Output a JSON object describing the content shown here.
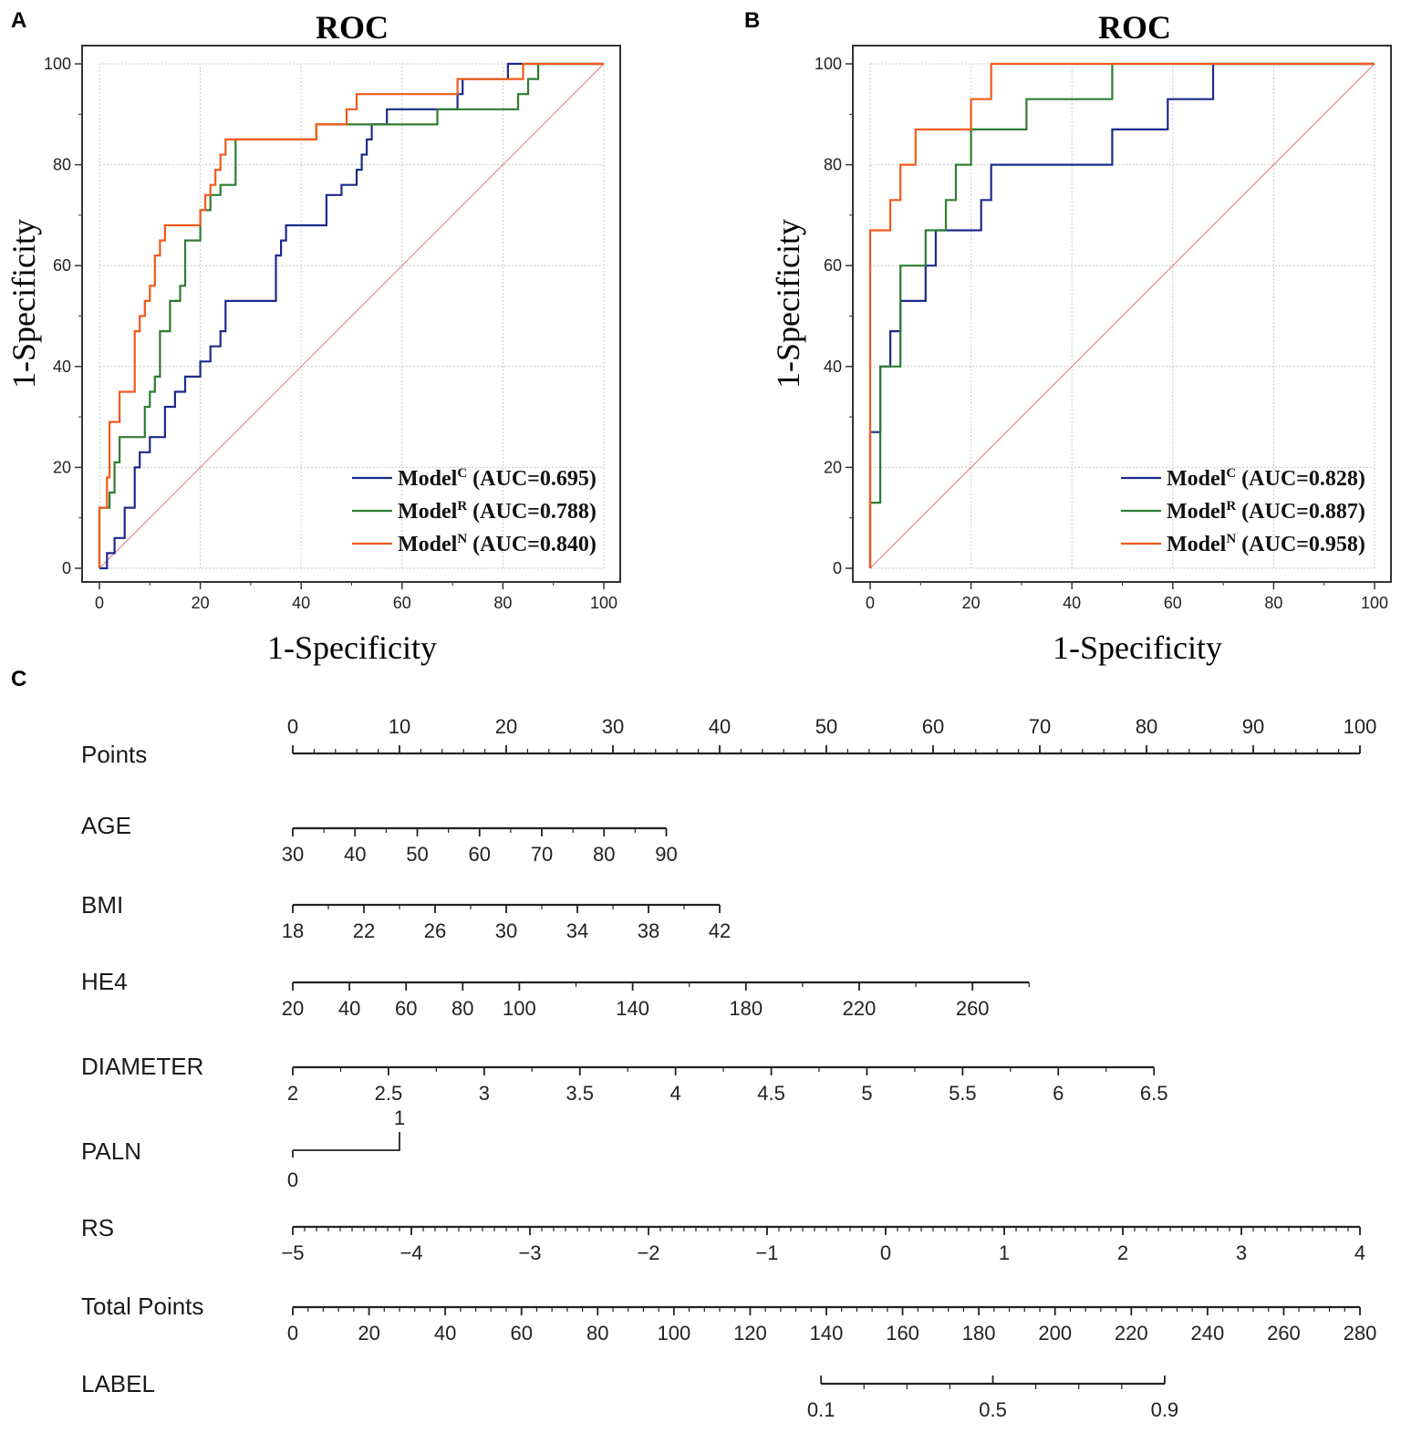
{
  "chart_data": [
    {
      "panel": "A",
      "type": "line",
      "title": "ROC",
      "xlabel": "1-Specificity",
      "ylabel": "1-Specificity",
      "xlim": [
        0,
        100
      ],
      "ylim": [
        0,
        100
      ],
      "xticks": [
        "0",
        "20",
        "40",
        "60",
        "80",
        "100"
      ],
      "yticks": [
        "0",
        "20",
        "40",
        "60",
        "80",
        "100"
      ],
      "grid": true,
      "legend_position": "bottom-right",
      "series": [
        {
          "name": "Model",
          "sup": "C",
          "auc_label": "(AUC=0.695)",
          "color": "#1c2a8c",
          "points": [
            [
              0,
              0
            ],
            [
              1.5,
              0
            ],
            [
              1.5,
              3
            ],
            [
              3,
              3
            ],
            [
              3,
              6
            ],
            [
              5,
              6
            ],
            [
              5,
              12
            ],
            [
              7,
              12
            ],
            [
              7,
              20
            ],
            [
              8,
              20
            ],
            [
              8,
              23
            ],
            [
              10,
              23
            ],
            [
              10,
              26
            ],
            [
              13,
              26
            ],
            [
              13,
              32
            ],
            [
              15,
              32
            ],
            [
              15,
              35
            ],
            [
              17,
              35
            ],
            [
              17,
              38
            ],
            [
              20,
              38
            ],
            [
              20,
              41
            ],
            [
              22,
              41
            ],
            [
              22,
              44
            ],
            [
              24,
              44
            ],
            [
              24,
              47
            ],
            [
              25,
              47
            ],
            [
              25,
              53
            ],
            [
              35,
              53
            ],
            [
              35,
              62
            ],
            [
              36,
              62
            ],
            [
              36,
              65
            ],
            [
              37,
              65
            ],
            [
              37,
              68
            ],
            [
              45,
              68
            ],
            [
              45,
              74
            ],
            [
              48,
              74
            ],
            [
              48,
              76
            ],
            [
              51,
              76
            ],
            [
              51,
              79
            ],
            [
              52,
              79
            ],
            [
              52,
              82
            ],
            [
              53,
              82
            ],
            [
              53,
              85
            ],
            [
              54,
              85
            ],
            [
              54,
              88
            ],
            [
              57,
              88
            ],
            [
              57,
              91
            ],
            [
              71,
              91
            ],
            [
              71,
              94
            ],
            [
              72,
              94
            ],
            [
              72,
              97
            ],
            [
              81,
              97
            ],
            [
              81,
              100
            ],
            [
              100,
              100
            ]
          ]
        },
        {
          "name": "Model",
          "sup": "R",
          "auc_label": "(AUC=0.788)",
          "color": "#2e7d32",
          "points": [
            [
              0,
              0
            ],
            [
              0,
              12
            ],
            [
              2,
              12
            ],
            [
              2,
              15
            ],
            [
              3,
              15
            ],
            [
              3,
              21
            ],
            [
              4,
              21
            ],
            [
              4,
              26
            ],
            [
              9,
              26
            ],
            [
              9,
              32
            ],
            [
              10,
              32
            ],
            [
              10,
              35
            ],
            [
              11,
              35
            ],
            [
              11,
              38
            ],
            [
              12,
              38
            ],
            [
              12,
              47
            ],
            [
              14,
              47
            ],
            [
              14,
              53
            ],
            [
              16,
              53
            ],
            [
              16,
              56
            ],
            [
              17,
              56
            ],
            [
              17,
              65
            ],
            [
              20,
              65
            ],
            [
              20,
              71
            ],
            [
              22,
              71
            ],
            [
              22,
              74
            ],
            [
              24,
              74
            ],
            [
              24,
              76
            ],
            [
              27,
              76
            ],
            [
              27,
              85
            ],
            [
              43,
              85
            ],
            [
              43,
              88
            ],
            [
              67,
              88
            ],
            [
              67,
              91
            ],
            [
              83,
              91
            ],
            [
              83,
              94
            ],
            [
              85,
              94
            ],
            [
              85,
              97
            ],
            [
              87,
              97
            ],
            [
              87,
              100
            ],
            [
              100,
              100
            ]
          ]
        },
        {
          "name": "Model",
          "sup": "N",
          "auc_label": "(AUC=0.840)",
          "color": "#f05a1a",
          "points": [
            [
              0,
              0
            ],
            [
              0,
              12
            ],
            [
              1.5,
              12
            ],
            [
              1.5,
              18
            ],
            [
              2,
              18
            ],
            [
              2,
              29
            ],
            [
              4,
              29
            ],
            [
              4,
              35
            ],
            [
              7,
              35
            ],
            [
              7,
              47
            ],
            [
              8,
              47
            ],
            [
              8,
              50
            ],
            [
              9,
              50
            ],
            [
              9,
              53
            ],
            [
              10,
              53
            ],
            [
              10,
              56
            ],
            [
              11,
              56
            ],
            [
              11,
              62
            ],
            [
              12,
              62
            ],
            [
              12,
              65
            ],
            [
              13,
              65
            ],
            [
              13,
              68
            ],
            [
              20,
              68
            ],
            [
              20,
              71
            ],
            [
              21,
              71
            ],
            [
              21,
              74
            ],
            [
              22,
              74
            ],
            [
              22,
              76
            ],
            [
              23,
              76
            ],
            [
              23,
              79
            ],
            [
              24,
              79
            ],
            [
              24,
              82
            ],
            [
              25,
              82
            ],
            [
              25,
              85
            ],
            [
              43,
              85
            ],
            [
              43,
              88
            ],
            [
              49,
              88
            ],
            [
              49,
              91
            ],
            [
              51,
              91
            ],
            [
              51,
              94
            ],
            [
              71,
              94
            ],
            [
              71,
              97
            ],
            [
              84,
              97
            ],
            [
              84,
              100
            ],
            [
              100,
              100
            ]
          ]
        }
      ],
      "reference_line": [
        [
          0,
          0
        ],
        [
          100,
          100
        ]
      ]
    },
    {
      "panel": "B",
      "type": "line",
      "title": "ROC",
      "xlabel": "1-Specificity",
      "ylabel": "1-Specificity",
      "xlim": [
        0,
        100
      ],
      "ylim": [
        0,
        100
      ],
      "xticks": [
        "0",
        "20",
        "40",
        "60",
        "80",
        "100"
      ],
      "yticks": [
        "0",
        "20",
        "40",
        "60",
        "80",
        "100"
      ],
      "grid": true,
      "legend_position": "bottom-right",
      "series": [
        {
          "name": "Model",
          "sup": "C",
          "auc_label": "(AUC=0.828)",
          "color": "#1c2a8c",
          "points": [
            [
              0,
              0
            ],
            [
              0,
              27
            ],
            [
              2,
              27
            ],
            [
              2,
              40
            ],
            [
              4,
              40
            ],
            [
              4,
              47
            ],
            [
              6,
              47
            ],
            [
              6,
              53
            ],
            [
              11,
              53
            ],
            [
              11,
              60
            ],
            [
              13,
              60
            ],
            [
              13,
              67
            ],
            [
              22,
              67
            ],
            [
              22,
              73
            ],
            [
              24,
              73
            ],
            [
              24,
              80
            ],
            [
              48,
              80
            ],
            [
              48,
              87
            ],
            [
              59,
              87
            ],
            [
              59,
              93
            ],
            [
              68,
              93
            ],
            [
              68,
              100
            ],
            [
              100,
              100
            ]
          ]
        },
        {
          "name": "Model",
          "sup": "R",
          "auc_label": "(AUC=0.887)",
          "color": "#2e7d32",
          "points": [
            [
              0,
              0
            ],
            [
              0,
              13
            ],
            [
              2,
              13
            ],
            [
              2,
              40
            ],
            [
              6,
              40
            ],
            [
              6,
              60
            ],
            [
              11,
              60
            ],
            [
              11,
              67
            ],
            [
              15,
              67
            ],
            [
              15,
              73
            ],
            [
              17,
              73
            ],
            [
              17,
              80
            ],
            [
              20,
              80
            ],
            [
              20,
              87
            ],
            [
              31,
              87
            ],
            [
              31,
              93
            ],
            [
              48,
              93
            ],
            [
              48,
              100
            ],
            [
              100,
              100
            ]
          ]
        },
        {
          "name": "Model",
          "sup": "N",
          "auc_label": "(AUC=0.958)",
          "color": "#f05a1a",
          "points": [
            [
              0,
              0
            ],
            [
              0,
              67
            ],
            [
              4,
              67
            ],
            [
              4,
              73
            ],
            [
              6,
              73
            ],
            [
              6,
              80
            ],
            [
              9,
              80
            ],
            [
              9,
              87
            ],
            [
              20,
              87
            ],
            [
              20,
              93
            ],
            [
              24,
              93
            ],
            [
              24,
              100
            ],
            [
              100,
              100
            ]
          ]
        }
      ],
      "reference_line": [
        [
          0,
          0
        ],
        [
          100,
          100
        ]
      ]
    },
    {
      "panel": "C",
      "type": "nomogram",
      "rows": [
        {
          "name": "Points",
          "label_above": true,
          "from": 0,
          "to": 100,
          "labels": [
            "0",
            "10",
            "20",
            "30",
            "40",
            "50",
            "60",
            "70",
            "80",
            "90",
            "100"
          ],
          "label_values": [
            0,
            10,
            20,
            30,
            40,
            50,
            60,
            70,
            80,
            90,
            100
          ],
          "minor_step": 2,
          "major_step": 10
        },
        {
          "name": "AGE",
          "from": 0,
          "to": 35,
          "labels": [
            "30",
            "40",
            "50",
            "60",
            "70",
            "80",
            "90"
          ],
          "label_values": [
            30,
            40,
            50,
            60,
            70,
            80,
            90
          ],
          "var_range": [
            30,
            90
          ],
          "minor_step": 5
        },
        {
          "name": "BMI",
          "from": 0,
          "to": 40,
          "labels": [
            "18",
            "22",
            "26",
            "30",
            "34",
            "38",
            "42"
          ],
          "label_values": [
            18,
            22,
            26,
            30,
            34,
            38,
            42
          ],
          "var_range": [
            18,
            42
          ],
          "minor_step": 2
        },
        {
          "name": "HE4",
          "from": 0,
          "to": 69,
          "labels": [
            "20",
            "40",
            "60",
            "80",
            "100",
            "140",
            "180",
            "220",
            "260"
          ],
          "label_values": [
            20,
            40,
            60,
            80,
            100,
            140,
            180,
            220,
            260
          ],
          "var_range": [
            20,
            280
          ],
          "minor_step": 20
        },
        {
          "name": "DIAMETER",
          "from": 0,
          "to": 80.7,
          "labels": [
            "2",
            "2.5",
            "3",
            "3.5",
            "4",
            "4.5",
            "5",
            "5.5",
            "6",
            "6.5"
          ],
          "label_values": [
            2,
            2.5,
            3,
            3.5,
            4,
            4.5,
            5,
            5.5,
            6,
            6.5
          ],
          "var_range": [
            2,
            6.5
          ],
          "minor_step": 0.25
        },
        {
          "name": "PALN",
          "from": 0,
          "to": 10,
          "labels": [
            "0",
            "1"
          ],
          "label_values": [
            0,
            1
          ],
          "var_range": [
            0,
            1
          ],
          "step_style": true
        },
        {
          "name": "RS",
          "from": 0,
          "to": 100,
          "labels": [
            "−5",
            "−4",
            "−3",
            "−2",
            "−1",
            "0",
            "1",
            "2",
            "3",
            "4"
          ],
          "label_values": [
            -5,
            -4,
            -3,
            -2,
            -1,
            0,
            1,
            2,
            3,
            4
          ],
          "var_range": [
            -5,
            4
          ],
          "minor_step": 0.1
        },
        {
          "name": "Total Points",
          "from": 0,
          "to": 100,
          "labels": [
            "0",
            "20",
            "40",
            "60",
            "80",
            "100",
            "120",
            "140",
            "160",
            "180",
            "200",
            "220",
            "240",
            "260",
            "280"
          ],
          "label_values": [
            0,
            20,
            40,
            60,
            80,
            100,
            120,
            140,
            160,
            180,
            200,
            220,
            240,
            260,
            280
          ],
          "var_range": [
            0,
            280
          ],
          "minor_step": 4
        },
        {
          "name": "LABEL",
          "from": 49.5,
          "to": 81.7,
          "labels": [
            "0.1",
            "0.5",
            "0.9"
          ],
          "label_values": [
            0.1,
            0.5,
            0.9
          ],
          "var_range": [
            0.1,
            0.9
          ],
          "minor_values": [
            0.2,
            0.3,
            0.4,
            0.6,
            0.7,
            0.8
          ]
        }
      ]
    }
  ],
  "panel_labels": [
    "A",
    "B",
    "C"
  ]
}
